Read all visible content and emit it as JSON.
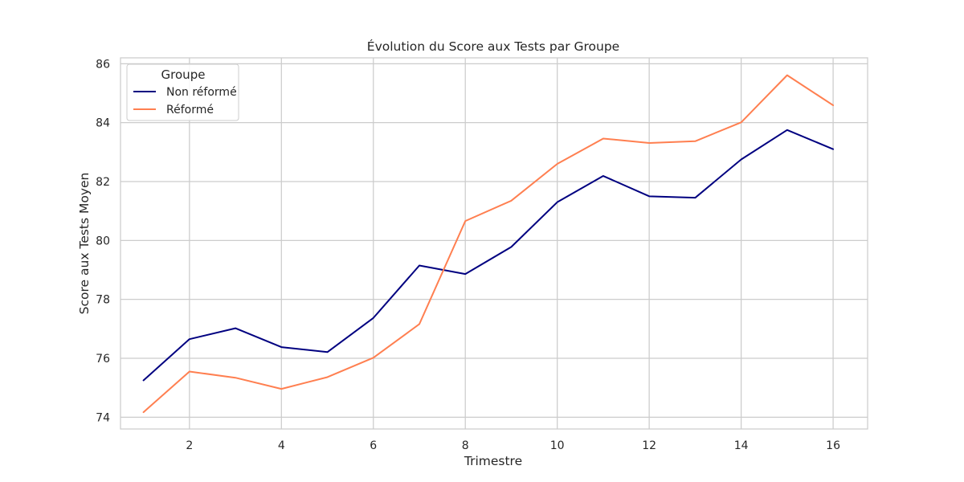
{
  "chart_data": {
    "type": "line",
    "title": "Évolution du Score aux Tests par Groupe",
    "xlabel": "Trimestre",
    "ylabel": "Score aux Tests Moyen",
    "xlim": [
      0.5,
      16.75
    ],
    "ylim": [
      73.6,
      86.2
    ],
    "xticks": [
      2,
      4,
      6,
      8,
      10,
      12,
      14,
      16
    ],
    "yticks": [
      74,
      76,
      78,
      80,
      82,
      84,
      86
    ],
    "grid": true,
    "legend": {
      "title": "Groupe",
      "position": "top-left"
    },
    "x": [
      1,
      2,
      3,
      4,
      5,
      6,
      7,
      8,
      9,
      10,
      11,
      12,
      13,
      14,
      15,
      16
    ],
    "series": [
      {
        "name": "Non réformé",
        "color": "#000080",
        "values": [
          75.25,
          76.65,
          77.02,
          76.38,
          76.21,
          77.37,
          79.15,
          78.86,
          79.78,
          81.3,
          82.19,
          81.5,
          81.45,
          82.75,
          83.75,
          83.1
        ]
      },
      {
        "name": "Réformé",
        "color": "#ff7f50",
        "values": [
          74.17,
          75.55,
          75.34,
          74.96,
          75.36,
          76.02,
          77.16,
          80.66,
          81.35,
          82.6,
          83.46,
          83.31,
          83.37,
          84.01,
          85.61,
          84.59
        ]
      }
    ]
  }
}
